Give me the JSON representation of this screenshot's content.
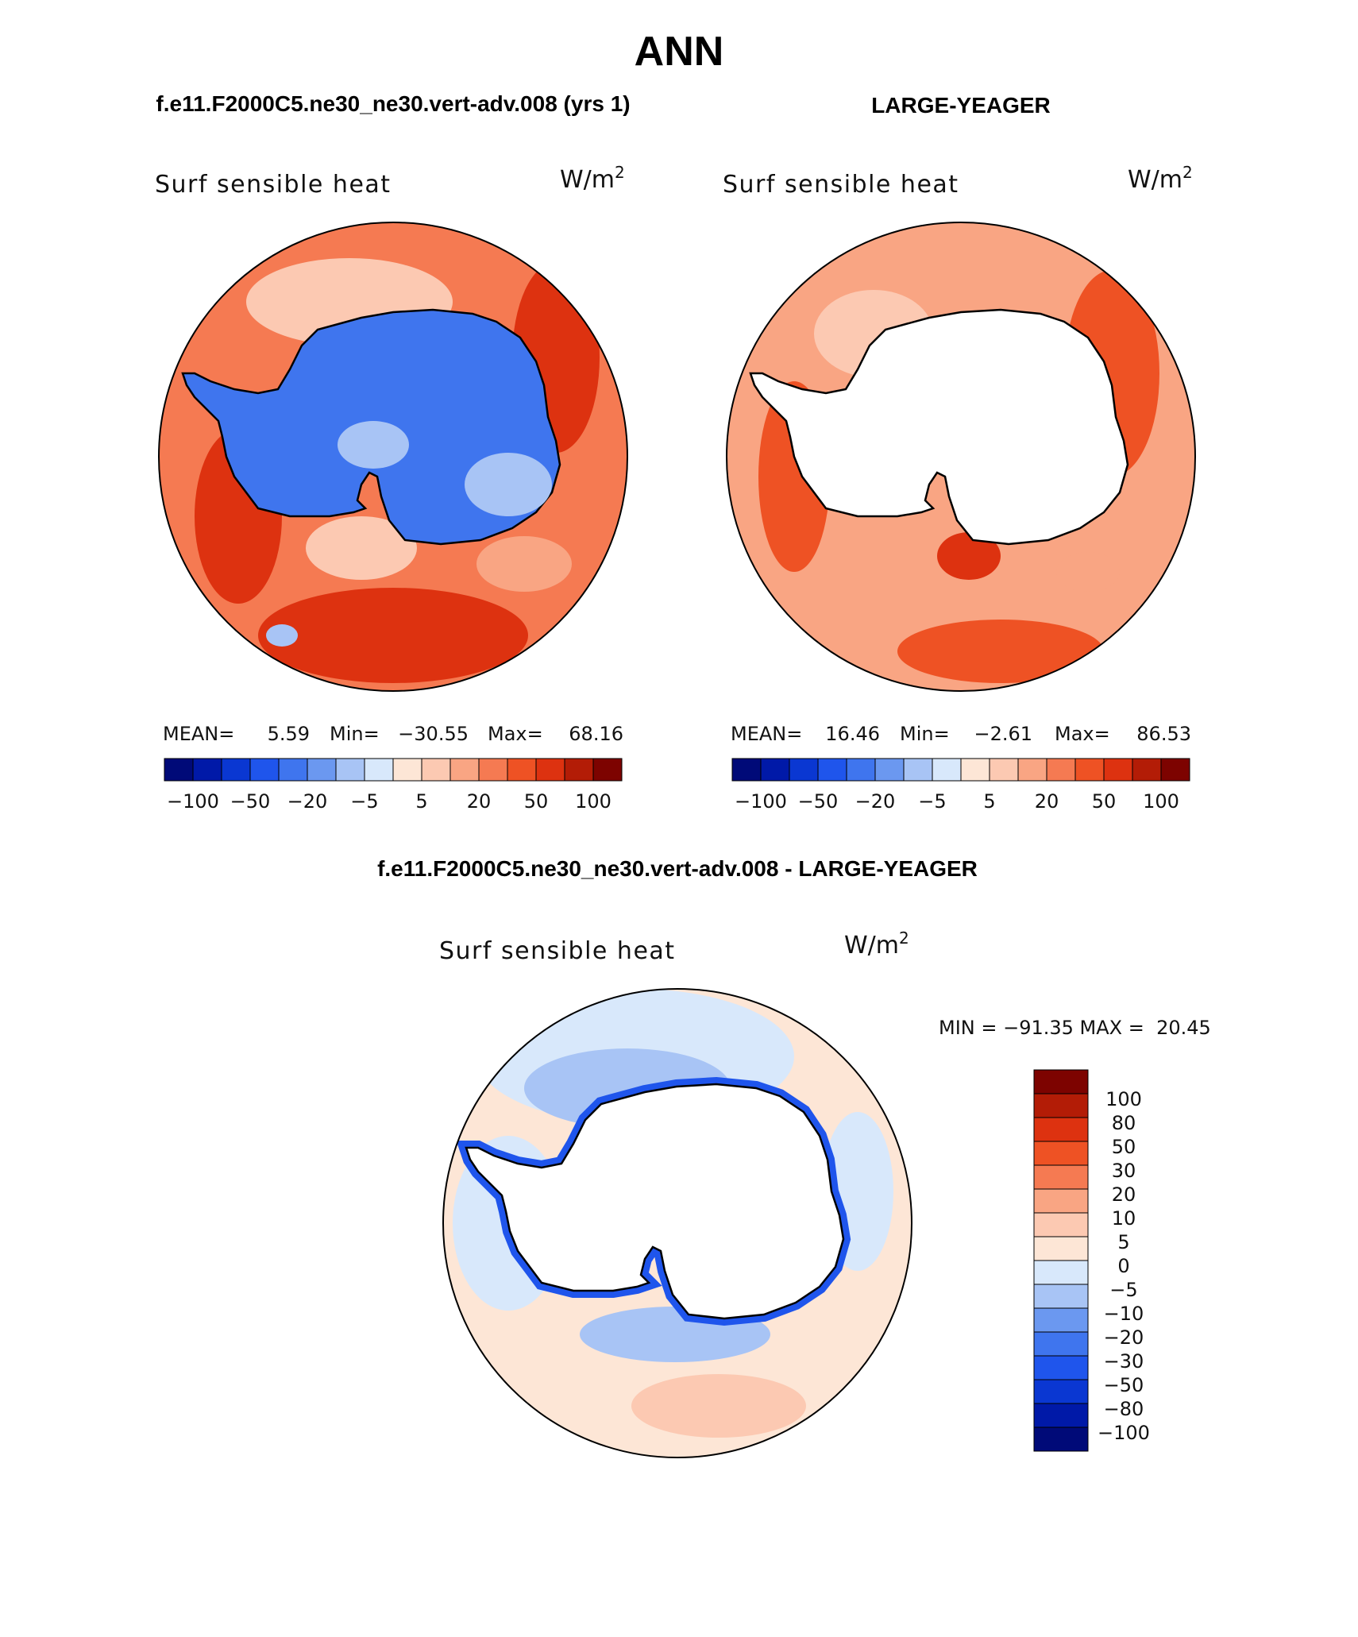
{
  "page": {
    "season": "ANN",
    "top_left_case": "f.e11.F2000C5.ne30_ne30.vert-adv.008 (yrs 1)",
    "top_right_case": "LARGE-YEAGER",
    "diff_title": "f.e11.F2000C5.ne30_ne30.vert-adv.008 - LARGE-YEAGER"
  },
  "panels": {
    "model": {
      "variable": "Surf sensible heat",
      "units_base": "W/m",
      "units_exp": "2",
      "stats": {
        "mean_label": "MEAN=",
        "mean": "5.59",
        "min_label": "Min=",
        "min": "−30.55",
        "max_label": "Max=",
        "max": "68.16"
      },
      "colorbar_labels": [
        "−100",
        "−50",
        "−20",
        "−5",
        "5",
        "20",
        "50",
        "100"
      ]
    },
    "obs": {
      "variable": "Surf sensible heat",
      "units_base": "W/m",
      "units_exp": "2",
      "stats": {
        "mean_label": "MEAN=",
        "mean": "16.46",
        "min_label": "Min=",
        "min": "−2.61",
        "max_label": "Max=",
        "max": "86.53"
      },
      "colorbar_labels": [
        "−100",
        "−50",
        "−20",
        "−5",
        "5",
        "20",
        "50",
        "100"
      ]
    },
    "diff": {
      "variable": "Surf sensible heat",
      "units_base": "W/m",
      "units_exp": "2",
      "minmax_text": "MIN = −91.35 MAX =  20.45",
      "colorbar_labels": [
        "100",
        "80",
        "50",
        "30",
        "20",
        "10",
        "5",
        "0",
        "−5",
        "−10",
        "−20",
        "−30",
        "−50",
        "−80",
        "−100"
      ]
    }
  },
  "colors": {
    "palette": [
      "#000a78",
      "#0019a8",
      "#0a37d2",
      "#1f55ec",
      "#3f75ee",
      "#6b98f0",
      "#a8c4f5",
      "#d8e8fb",
      "#fde6d6",
      "#fcc9b2",
      "#f9a583",
      "#f57a52",
      "#ee5224",
      "#dd3210",
      "#b31c06",
      "#7d0300"
    ],
    "diff_palette": [
      "#000a78",
      "#0019a8",
      "#0a37d2",
      "#1f55ec",
      "#3f75ee",
      "#6b98f0",
      "#a8c4f5",
      "#d8e8fb",
      "#fde6d6",
      "#fcc9b2",
      "#f9a583",
      "#f57a52",
      "#ee5224",
      "#dd3210",
      "#b31c06",
      "#7d0300"
    ],
    "model_ocean": "#f57a52",
    "model_land": "#3f75ee",
    "obs_ocean": "#f9a583",
    "diff_ocean": "#fde6d6",
    "diff_near": "#a8c4f5"
  }
}
